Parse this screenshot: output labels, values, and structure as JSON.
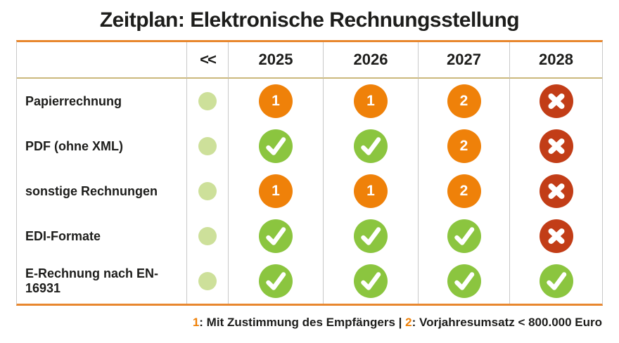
{
  "title": "Zeitplan: Elektronische Rechnungsstellung",
  "colors": {
    "accent_orange": "#ef8109",
    "allowed_green": "#8bc53f",
    "past_pale_green": "#cde09a",
    "not_allowed_red": "#c23d17",
    "table_border_orange": "#e8872e",
    "header_rule_tan": "#cbb87c",
    "grid_line_gray": "#c9c9c9",
    "text_black": "#1d1d1b"
  },
  "table": {
    "header": {
      "past_label": "<<",
      "years": [
        "2025",
        "2026",
        "2027",
        "2028"
      ]
    },
    "rows": [
      {
        "label": "Papierrechnung",
        "past": "dot",
        "cells": [
          "num-1",
          "num-1",
          "num-2",
          "cross"
        ]
      },
      {
        "label": "PDF (ohne XML)",
        "past": "dot",
        "cells": [
          "check",
          "check",
          "num-2",
          "cross"
        ]
      },
      {
        "label": "sonstige Rechnungen",
        "past": "dot",
        "cells": [
          "num-1",
          "num-1",
          "num-2",
          "cross"
        ]
      },
      {
        "label": "EDI-Formate",
        "past": "dot",
        "cells": [
          "check",
          "check",
          "check",
          "cross"
        ]
      },
      {
        "label": "E-Rechnung nach EN-16931",
        "past": "dot",
        "cells": [
          "check",
          "check",
          "check",
          "check"
        ]
      }
    ]
  },
  "legend": {
    "note1_num": "1",
    "note1_text": ": Mit Zustimmung des Empfängers",
    "separator": " | ",
    "note2_num": "2",
    "note2_text": ": Vorjahresumsatz < 800.000 Euro"
  },
  "chart_data": {
    "type": "table",
    "title": "Zeitplan: Elektronische Rechnungsstellung",
    "columns": [
      "<<",
      "2025",
      "2026",
      "2027",
      "2028"
    ],
    "rows": [
      {
        "label": "Papierrechnung",
        "values": [
          "past",
          "allowed-note-1",
          "allowed-note-1",
          "allowed-note-2",
          "not-allowed"
        ]
      },
      {
        "label": "PDF (ohne XML)",
        "values": [
          "past",
          "allowed",
          "allowed",
          "allowed-note-2",
          "not-allowed"
        ]
      },
      {
        "label": "sonstige Rechnungen",
        "values": [
          "past",
          "allowed-note-1",
          "allowed-note-1",
          "allowed-note-2",
          "not-allowed"
        ]
      },
      {
        "label": "EDI-Formate",
        "values": [
          "past",
          "allowed",
          "allowed",
          "allowed",
          "not-allowed"
        ]
      },
      {
        "label": "E-Rechnung nach EN-16931",
        "values": [
          "past",
          "allowed",
          "allowed",
          "allowed",
          "allowed"
        ]
      }
    ],
    "notes": {
      "1": "Mit Zustimmung des Empfängers",
      "2": "Vorjahresumsatz < 800.000 Euro"
    }
  }
}
